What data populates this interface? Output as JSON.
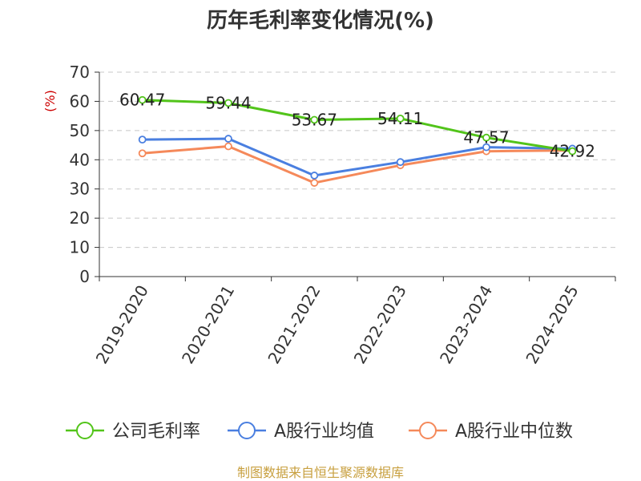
{
  "chart_data": {
    "type": "line",
    "title": "历年毛利率变化情况(%)",
    "unit_label": "(%)",
    "categories": [
      "2019-2020",
      "2020-2021",
      "2021-2022",
      "2022-2023",
      "2023-2024",
      "2024-2025"
    ],
    "ylim": [
      0,
      70
    ],
    "yticks": [
      0,
      10,
      20,
      30,
      40,
      50,
      60,
      70
    ],
    "grid": true,
    "legend_position": "bottom",
    "series": [
      {
        "name": "公司毛利率",
        "color": "#52c41a",
        "show_labels": true,
        "values": [
          60.47,
          59.44,
          53.67,
          54.11,
          47.57,
          42.92
        ],
        "labels": [
          "60.47",
          "59.44",
          "53.67",
          "54.11",
          "47.57",
          "42.92"
        ]
      },
      {
        "name": "A股行业均值",
        "color": "#4a7fe0",
        "show_labels": false,
        "values": [
          46.9,
          47.2,
          34.6,
          39.2,
          44.3,
          43.8
        ]
      },
      {
        "name": "A股行业中位数",
        "color": "#f5895a",
        "show_labels": false,
        "values": [
          42.2,
          44.6,
          32.1,
          38.1,
          42.9,
          43.2
        ]
      }
    ],
    "source": "制图数据来自恒生聚源数据库"
  }
}
